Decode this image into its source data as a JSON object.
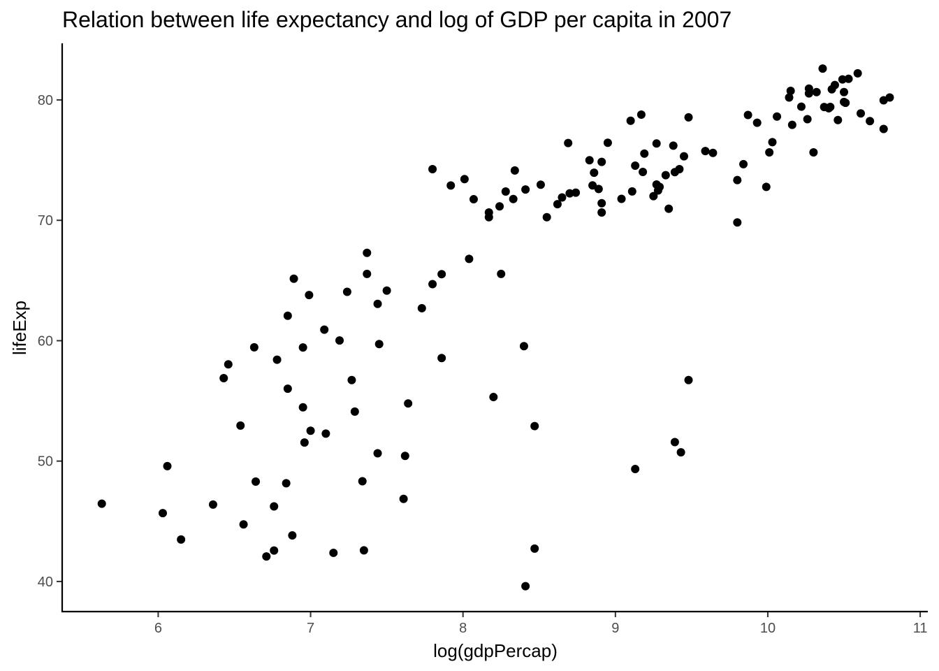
{
  "chart_data": {
    "type": "scatter",
    "title": "Relation between life expectancy and log of GDP per capita in 2007",
    "xlabel": "log(gdpPercap)",
    "ylabel": "lifeExp",
    "xlim": [
      5.37,
      11.05
    ],
    "ylim": [
      37.5,
      84.7
    ],
    "xticks": [
      6,
      7,
      8,
      9,
      10,
      11
    ],
    "yticks": [
      40,
      50,
      60,
      70,
      80
    ],
    "grid": false,
    "legend": "none",
    "point_color": "#000000",
    "series": [
      {
        "points": [
          [
            5.63,
            46.46
          ],
          [
            6.03,
            45.68
          ],
          [
            6.06,
            49.58
          ],
          [
            6.15,
            43.49
          ],
          [
            6.36,
            46.39
          ],
          [
            6.43,
            56.89
          ],
          [
            6.46,
            58.04
          ],
          [
            6.54,
            52.95
          ],
          [
            6.56,
            44.74
          ],
          [
            6.63,
            59.45
          ],
          [
            6.64,
            48.3
          ],
          [
            6.71,
            42.08
          ],
          [
            6.76,
            42.57
          ],
          [
            6.76,
            46.24
          ],
          [
            6.78,
            58.42
          ],
          [
            6.84,
            48.16
          ],
          [
            6.85,
            62.07
          ],
          [
            6.85,
            56.01
          ],
          [
            6.88,
            43.83
          ],
          [
            6.89,
            65.15
          ],
          [
            6.95,
            54.47
          ],
          [
            6.95,
            59.44
          ],
          [
            6.96,
            51.54
          ],
          [
            6.99,
            63.79
          ],
          [
            7.0,
            52.52
          ],
          [
            7.09,
            60.92
          ],
          [
            7.1,
            52.28
          ],
          [
            7.15,
            42.38
          ],
          [
            7.19,
            60.02
          ],
          [
            7.24,
            64.06
          ],
          [
            7.27,
            56.73
          ],
          [
            7.29,
            54.11
          ],
          [
            7.34,
            48.33
          ],
          [
            7.35,
            42.59
          ],
          [
            7.37,
            67.3
          ],
          [
            7.37,
            65.55
          ],
          [
            7.44,
            50.65
          ],
          [
            7.44,
            63.06
          ],
          [
            7.45,
            59.72
          ],
          [
            7.5,
            64.16
          ],
          [
            7.61,
            46.86
          ],
          [
            7.62,
            50.43
          ],
          [
            7.64,
            54.79
          ],
          [
            7.73,
            62.7
          ],
          [
            7.8,
            64.7
          ],
          [
            7.8,
            74.25
          ],
          [
            7.86,
            65.53
          ],
          [
            7.86,
            58.56
          ],
          [
            7.92,
            72.89
          ],
          [
            8.01,
            73.42
          ],
          [
            8.04,
            66.8
          ],
          [
            8.07,
            71.75
          ],
          [
            8.17,
            70.26
          ],
          [
            8.17,
            70.65
          ],
          [
            8.2,
            55.32
          ],
          [
            8.24,
            71.16
          ],
          [
            8.25,
            65.55
          ],
          [
            8.28,
            72.39
          ],
          [
            8.33,
            71.77
          ],
          [
            8.34,
            74.14
          ],
          [
            8.4,
            59.55
          ],
          [
            8.41,
            39.61
          ],
          [
            8.41,
            72.56
          ],
          [
            8.47,
            52.91
          ],
          [
            8.47,
            42.73
          ],
          [
            8.51,
            72.96
          ],
          [
            8.55,
            70.26
          ],
          [
            8.62,
            71.34
          ],
          [
            8.65,
            71.9
          ],
          [
            8.69,
            76.42
          ],
          [
            8.7,
            72.24
          ],
          [
            8.74,
            72.3
          ],
          [
            8.83,
            74.99
          ],
          [
            8.85,
            72.9
          ],
          [
            8.86,
            73.95
          ],
          [
            8.89,
            72.6
          ],
          [
            8.91,
            74.85
          ],
          [
            8.91,
            71.42
          ],
          [
            8.91,
            70.65
          ],
          [
            8.95,
            76.44
          ],
          [
            9.04,
            71.78
          ],
          [
            9.1,
            78.27
          ],
          [
            9.11,
            72.4
          ],
          [
            9.13,
            49.34
          ],
          [
            9.13,
            74.54
          ],
          [
            9.17,
            78.78
          ],
          [
            9.18,
            74.02
          ],
          [
            9.19,
            75.54
          ],
          [
            9.25,
            72.01
          ],
          [
            9.27,
            72.97
          ],
          [
            9.27,
            76.38
          ],
          [
            9.28,
            72.48
          ],
          [
            9.29,
            72.78
          ],
          [
            9.33,
            73.75
          ],
          [
            9.35,
            70.96
          ],
          [
            9.38,
            76.2
          ],
          [
            9.39,
            51.58
          ],
          [
            9.39,
            74.0
          ],
          [
            9.42,
            74.25
          ],
          [
            9.43,
            50.73
          ],
          [
            9.45,
            75.32
          ],
          [
            9.48,
            78.55
          ],
          [
            9.48,
            56.73
          ],
          [
            9.59,
            75.75
          ],
          [
            9.64,
            75.6
          ],
          [
            9.8,
            73.34
          ],
          [
            9.8,
            69.82
          ],
          [
            9.84,
            74.66
          ],
          [
            9.87,
            78.75
          ],
          [
            9.93,
            78.1
          ],
          [
            9.99,
            72.78
          ],
          [
            10.01,
            75.64
          ],
          [
            10.03,
            76.49
          ],
          [
            10.06,
            78.62
          ],
          [
            10.14,
            80.2
          ],
          [
            10.15,
            80.75
          ],
          [
            10.16,
            77.93
          ],
          [
            10.22,
            79.44
          ],
          [
            10.26,
            78.4
          ],
          [
            10.27,
            80.54
          ],
          [
            10.27,
            80.94
          ],
          [
            10.3,
            75.64
          ],
          [
            10.32,
            80.65
          ],
          [
            10.36,
            82.6
          ],
          [
            10.37,
            79.41
          ],
          [
            10.4,
            79.31
          ],
          [
            10.41,
            79.42
          ],
          [
            10.42,
            80.88
          ],
          [
            10.44,
            81.24
          ],
          [
            10.46,
            78.33
          ],
          [
            10.49,
            81.7
          ],
          [
            10.5,
            79.83
          ],
          [
            10.5,
            80.65
          ],
          [
            10.51,
            79.76
          ],
          [
            10.53,
            81.75
          ],
          [
            10.59,
            82.21
          ],
          [
            10.61,
            78.88
          ],
          [
            10.67,
            78.24
          ],
          [
            10.76,
            79.97
          ],
          [
            10.76,
            77.59
          ],
          [
            10.8,
            80.2
          ]
        ]
      }
    ]
  }
}
